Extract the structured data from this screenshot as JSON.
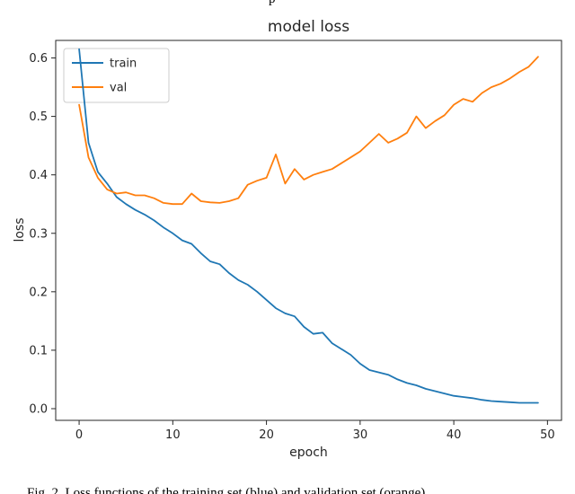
{
  "page": {
    "top_cropped_text": "p",
    "caption": "Fig. 2.   Loss functions of the training set (blue) and validation set (orange)"
  },
  "chart_data": {
    "type": "line",
    "title": "model loss",
    "xlabel": "epoch",
    "ylabel": "loss",
    "xlim": [
      -2.5,
      51.5
    ],
    "ylim": [
      -0.02,
      0.63
    ],
    "x_ticks": [
      0,
      10,
      20,
      30,
      40,
      50
    ],
    "y_ticks": [
      0.0,
      0.1,
      0.2,
      0.3,
      0.4,
      0.5,
      0.6
    ],
    "grid": false,
    "legend_position": "upper left",
    "x": [
      0,
      1,
      2,
      3,
      4,
      5,
      6,
      7,
      8,
      9,
      10,
      11,
      12,
      13,
      14,
      15,
      16,
      17,
      18,
      19,
      20,
      21,
      22,
      23,
      24,
      25,
      26,
      27,
      28,
      29,
      30,
      31,
      32,
      33,
      34,
      35,
      36,
      37,
      38,
      39,
      40,
      41,
      42,
      43,
      44,
      45,
      46,
      47,
      48,
      49
    ],
    "series": [
      {
        "name": "train",
        "color": "#1f77b4",
        "values": [
          0.615,
          0.455,
          0.405,
          0.385,
          0.362,
          0.35,
          0.34,
          0.332,
          0.322,
          0.31,
          0.3,
          0.288,
          0.282,
          0.266,
          0.252,
          0.247,
          0.232,
          0.22,
          0.212,
          0.2,
          0.186,
          0.172,
          0.163,
          0.158,
          0.14,
          0.128,
          0.13,
          0.112,
          0.102,
          0.092,
          0.077,
          0.066,
          0.062,
          0.058,
          0.05,
          0.044,
          0.04,
          0.034,
          0.03,
          0.026,
          0.022,
          0.02,
          0.018,
          0.015,
          0.013,
          0.012,
          0.011,
          0.01,
          0.01,
          0.01
        ]
      },
      {
        "name": "val",
        "color": "#ff7f0e",
        "values": [
          0.52,
          0.43,
          0.395,
          0.375,
          0.368,
          0.37,
          0.365,
          0.365,
          0.36,
          0.352,
          0.35,
          0.35,
          0.368,
          0.355,
          0.353,
          0.352,
          0.355,
          0.36,
          0.383,
          0.39,
          0.395,
          0.435,
          0.385,
          0.41,
          0.392,
          0.4,
          0.405,
          0.41,
          0.42,
          0.43,
          0.44,
          0.455,
          0.47,
          0.455,
          0.462,
          0.472,
          0.5,
          0.48,
          0.492,
          0.502,
          0.52,
          0.53,
          0.525,
          0.54,
          0.55,
          0.556,
          0.565,
          0.576,
          0.585,
          0.602
        ]
      }
    ]
  }
}
